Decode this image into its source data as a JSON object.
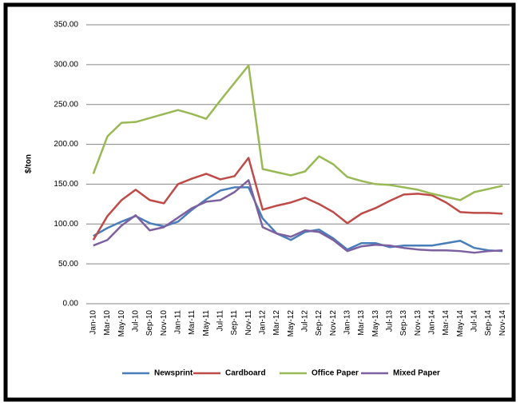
{
  "chart_data": {
    "type": "line",
    "y_label": "$/ton",
    "categories": [
      "Jan-10",
      "Mar-10",
      "May-10",
      "Jul-10",
      "Sep-10",
      "Nov-10",
      "Jan-11",
      "Mar-11",
      "May-11",
      "Jul-11",
      "Sep-11",
      "Nov-11",
      "Jan-12",
      "Mar-12",
      "May-12",
      "Jul-12",
      "Sep-12",
      "Nov-12",
      "Jan-13",
      "Mar-13",
      "May-13",
      "Jul-13",
      "Sep-13",
      "Nov-13",
      "Jan-14",
      "Mar-14",
      "May-14",
      "Jul-14",
      "Sep-14",
      "Nov-14"
    ],
    "series": [
      {
        "name": "Newsprint",
        "color": "#4a7ebb",
        "values": [
          85,
          95,
          103,
          110,
          101,
          97,
          103,
          118,
          131,
          142,
          146,
          146,
          107,
          88,
          80,
          90,
          93,
          82,
          68,
          76,
          76,
          71,
          73,
          73,
          73,
          76,
          79,
          70,
          67,
          66
        ]
      },
      {
        "name": "Cardboard",
        "color": "#be4b48",
        "values": [
          80,
          110,
          130,
          143,
          130,
          126,
          150,
          157,
          163,
          156,
          160,
          183,
          118,
          123,
          127,
          133,
          125,
          115,
          101,
          113,
          120,
          129,
          137,
          138,
          136,
          127,
          115,
          114,
          114,
          113
        ]
      },
      {
        "name": "Office Paper",
        "color": "#98b954",
        "values": [
          163,
          210,
          227,
          228,
          233,
          238,
          243,
          238,
          232,
          255,
          277,
          299,
          169,
          165,
          161,
          166,
          185,
          175,
          159,
          154,
          150,
          149,
          146,
          143,
          138,
          134,
          130,
          140,
          144,
          148
        ]
      },
      {
        "name": "Mixed Paper",
        "color": "#7d60a0",
        "values": [
          73,
          80,
          98,
          111,
          92,
          96,
          108,
          120,
          128,
          130,
          140,
          155,
          96,
          88,
          84,
          92,
          90,
          80,
          66,
          72,
          74,
          73,
          70,
          68,
          67,
          67,
          66,
          64,
          66,
          67
        ]
      }
    ],
    "ylim": [
      0,
      350
    ],
    "yticks": [
      {
        "value": 0,
        "label": "0.00"
      },
      {
        "value": 50,
        "label": "50.00"
      },
      {
        "value": 100,
        "label": "100.00"
      },
      {
        "value": 150,
        "label": "150.00"
      },
      {
        "value": 200,
        "label": "200.00"
      },
      {
        "value": 250,
        "label": "250.00"
      },
      {
        "value": 300,
        "label": "300.00"
      },
      {
        "value": 350,
        "label": "350.00"
      }
    ],
    "grid": true,
    "legend": "bottom"
  }
}
